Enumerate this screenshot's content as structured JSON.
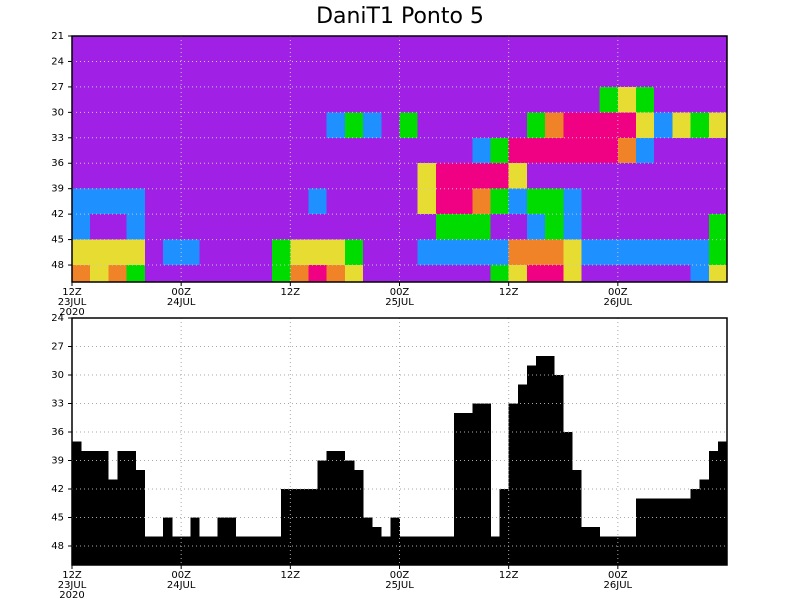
{
  "chart_data": [
    {
      "type": "heatmap",
      "title": "DaniT1 Ponto 5",
      "xbins": [
        0,
        2,
        4,
        6,
        8,
        10,
        12,
        14,
        16,
        18,
        20,
        22,
        24,
        26,
        28,
        30,
        32,
        34,
        36,
        38,
        40,
        42,
        44,
        46,
        48,
        50,
        52,
        54,
        56,
        58,
        60,
        62,
        64,
        66,
        68,
        70,
        72
      ],
      "ybins": [
        21,
        24,
        27,
        30,
        33,
        36,
        39,
        42,
        45,
        48,
        50
      ],
      "colors": [
        "#a020e6",
        "#1e90ff",
        "#00dc00",
        "#e6dc32",
        "#f08228",
        "#f00082"
      ],
      "values": [
        [
          0,
          0,
          0,
          0,
          0,
          0,
          0,
          0,
          0,
          0,
          0,
          0,
          0,
          0,
          0,
          0,
          0,
          0,
          0,
          0,
          0,
          0,
          0,
          0,
          0,
          0,
          0,
          0,
          0,
          0,
          0,
          0,
          0,
          0,
          0,
          0
        ],
        [
          0,
          0,
          0,
          0,
          0,
          0,
          0,
          0,
          0,
          0,
          0,
          0,
          0,
          0,
          0,
          0,
          0,
          0,
          0,
          0,
          0,
          0,
          0,
          0,
          0,
          0,
          0,
          0,
          0,
          0,
          0,
          0,
          0,
          0,
          0,
          0
        ],
        [
          0,
          0,
          0,
          0,
          0,
          0,
          0,
          0,
          0,
          0,
          0,
          0,
          0,
          0,
          0,
          0,
          0,
          0,
          0,
          0,
          0,
          0,
          0,
          0,
          0,
          0,
          0,
          0,
          0,
          2,
          3,
          2,
          0,
          0,
          0,
          0
        ],
        [
          0,
          0,
          0,
          0,
          0,
          0,
          0,
          0,
          0,
          0,
          0,
          0,
          0,
          0,
          1,
          2,
          1,
          0,
          2,
          0,
          0,
          0,
          0,
          0,
          0,
          2,
          4,
          5,
          5,
          5,
          5,
          3,
          1,
          3,
          2,
          3
        ],
        [
          0,
          0,
          0,
          0,
          0,
          0,
          0,
          0,
          0,
          0,
          0,
          0,
          0,
          0,
          0,
          0,
          0,
          0,
          0,
          0,
          0,
          0,
          1,
          2,
          5,
          5,
          5,
          5,
          5,
          5,
          4,
          1,
          0,
          0,
          0,
          0
        ],
        [
          0,
          0,
          0,
          0,
          0,
          0,
          0,
          0,
          0,
          0,
          0,
          0,
          0,
          0,
          0,
          0,
          0,
          0,
          0,
          3,
          5,
          5,
          5,
          5,
          3,
          0,
          0,
          0,
          0,
          0,
          0,
          0,
          0,
          0,
          0,
          0
        ],
        [
          1,
          1,
          1,
          1,
          0,
          0,
          0,
          0,
          0,
          0,
          0,
          0,
          0,
          1,
          0,
          0,
          0,
          0,
          0,
          3,
          5,
          5,
          4,
          2,
          1,
          2,
          2,
          1,
          0,
          0,
          0,
          0,
          0,
          0,
          0,
          0
        ],
        [
          1,
          0,
          0,
          1,
          0,
          0,
          0,
          0,
          0,
          0,
          0,
          0,
          0,
          0,
          0,
          0,
          0,
          0,
          0,
          0,
          2,
          2,
          2,
          0,
          0,
          1,
          2,
          1,
          0,
          0,
          0,
          0,
          0,
          0,
          0,
          2
        ],
        [
          3,
          3,
          3,
          3,
          0,
          1,
          1,
          0,
          0,
          0,
          0,
          2,
          3,
          3,
          3,
          2,
          0,
          0,
          0,
          1,
          1,
          1,
          1,
          1,
          4,
          4,
          4,
          3,
          1,
          1,
          1,
          1,
          1,
          1,
          1,
          2
        ],
        [
          4,
          3,
          4,
          2,
          0,
          0,
          0,
          0,
          0,
          0,
          0,
          2,
          4,
          5,
          4,
          3,
          0,
          0,
          0,
          0,
          0,
          0,
          0,
          2,
          3,
          5,
          5,
          3,
          0,
          0,
          0,
          0,
          0,
          0,
          1,
          3
        ]
      ],
      "xlim": [
        0,
        72
      ],
      "ylim": [
        21,
        50
      ],
      "y_reversed": true,
      "grid": true,
      "yticks": [
        21,
        24,
        27,
        30,
        33,
        36,
        39,
        42,
        45,
        48
      ],
      "xticks": [
        {
          "value": 0,
          "label": "12Z"
        },
        {
          "value": 12,
          "label": "00Z"
        },
        {
          "value": 24,
          "label": "12Z"
        },
        {
          "value": 36,
          "label": "00Z"
        },
        {
          "value": 48,
          "label": "12Z"
        },
        {
          "value": 60,
          "label": "00Z"
        }
      ],
      "xtick_dates": [
        {
          "value": 0,
          "label": "23JUL"
        },
        {
          "value": 12,
          "label": "24JUL"
        },
        {
          "value": 36,
          "label": "25JUL"
        },
        {
          "value": 60,
          "label": "26JUL"
        }
      ],
      "xtick_year": {
        "value": 0,
        "label": "2020"
      }
    },
    {
      "type": "bar",
      "color": "#000000",
      "x": [
        0,
        1,
        2,
        3,
        4,
        5,
        6,
        7,
        8,
        9,
        10,
        11,
        12,
        13,
        14,
        15,
        16,
        17,
        18,
        19,
        20,
        21,
        22,
        23,
        24,
        25,
        26,
        27,
        28,
        29,
        30,
        31,
        32,
        33,
        34,
        35,
        36,
        37,
        38,
        39,
        40,
        41,
        42,
        43,
        44,
        45,
        46,
        47,
        48,
        49,
        50,
        51,
        52,
        53,
        54,
        55,
        56,
        57,
        58,
        59,
        60,
        61,
        62,
        63,
        64,
        65,
        66,
        67,
        68,
        69,
        70,
        71
      ],
      "values": [
        37,
        38,
        38,
        38,
        41,
        38,
        38,
        40,
        47,
        47,
        45,
        47,
        47,
        45,
        47,
        47,
        45,
        45,
        47,
        47,
        47,
        47,
        47,
        42,
        42,
        42,
        42,
        39,
        38,
        38,
        39,
        40,
        45,
        46,
        47,
        45,
        47,
        47,
        47,
        47,
        47,
        47,
        34,
        34,
        33,
        33,
        47,
        42,
        33,
        31,
        29,
        28,
        28,
        30,
        36,
        40,
        46,
        46,
        47,
        47,
        47,
        47,
        43,
        43,
        43,
        43,
        43,
        43,
        42,
        41,
        38,
        37
      ],
      "xlim": [
        0,
        72
      ],
      "ylim": [
        24,
        50
      ],
      "y_reversed": true,
      "grid": true,
      "yticks": [
        24,
        27,
        30,
        33,
        36,
        39,
        42,
        45,
        48
      ],
      "xticks": [
        {
          "value": 0,
          "label": "12Z"
        },
        {
          "value": 12,
          "label": "00Z"
        },
        {
          "value": 24,
          "label": "12Z"
        },
        {
          "value": 36,
          "label": "00Z"
        },
        {
          "value": 48,
          "label": "12Z"
        },
        {
          "value": 60,
          "label": "00Z"
        }
      ],
      "xtick_dates": [
        {
          "value": 0,
          "label": "23JUL"
        },
        {
          "value": 12,
          "label": "24JUL"
        },
        {
          "value": 36,
          "label": "25JUL"
        },
        {
          "value": 60,
          "label": "26JUL"
        }
      ],
      "xtick_year": {
        "value": 0,
        "label": "2020"
      }
    }
  ]
}
